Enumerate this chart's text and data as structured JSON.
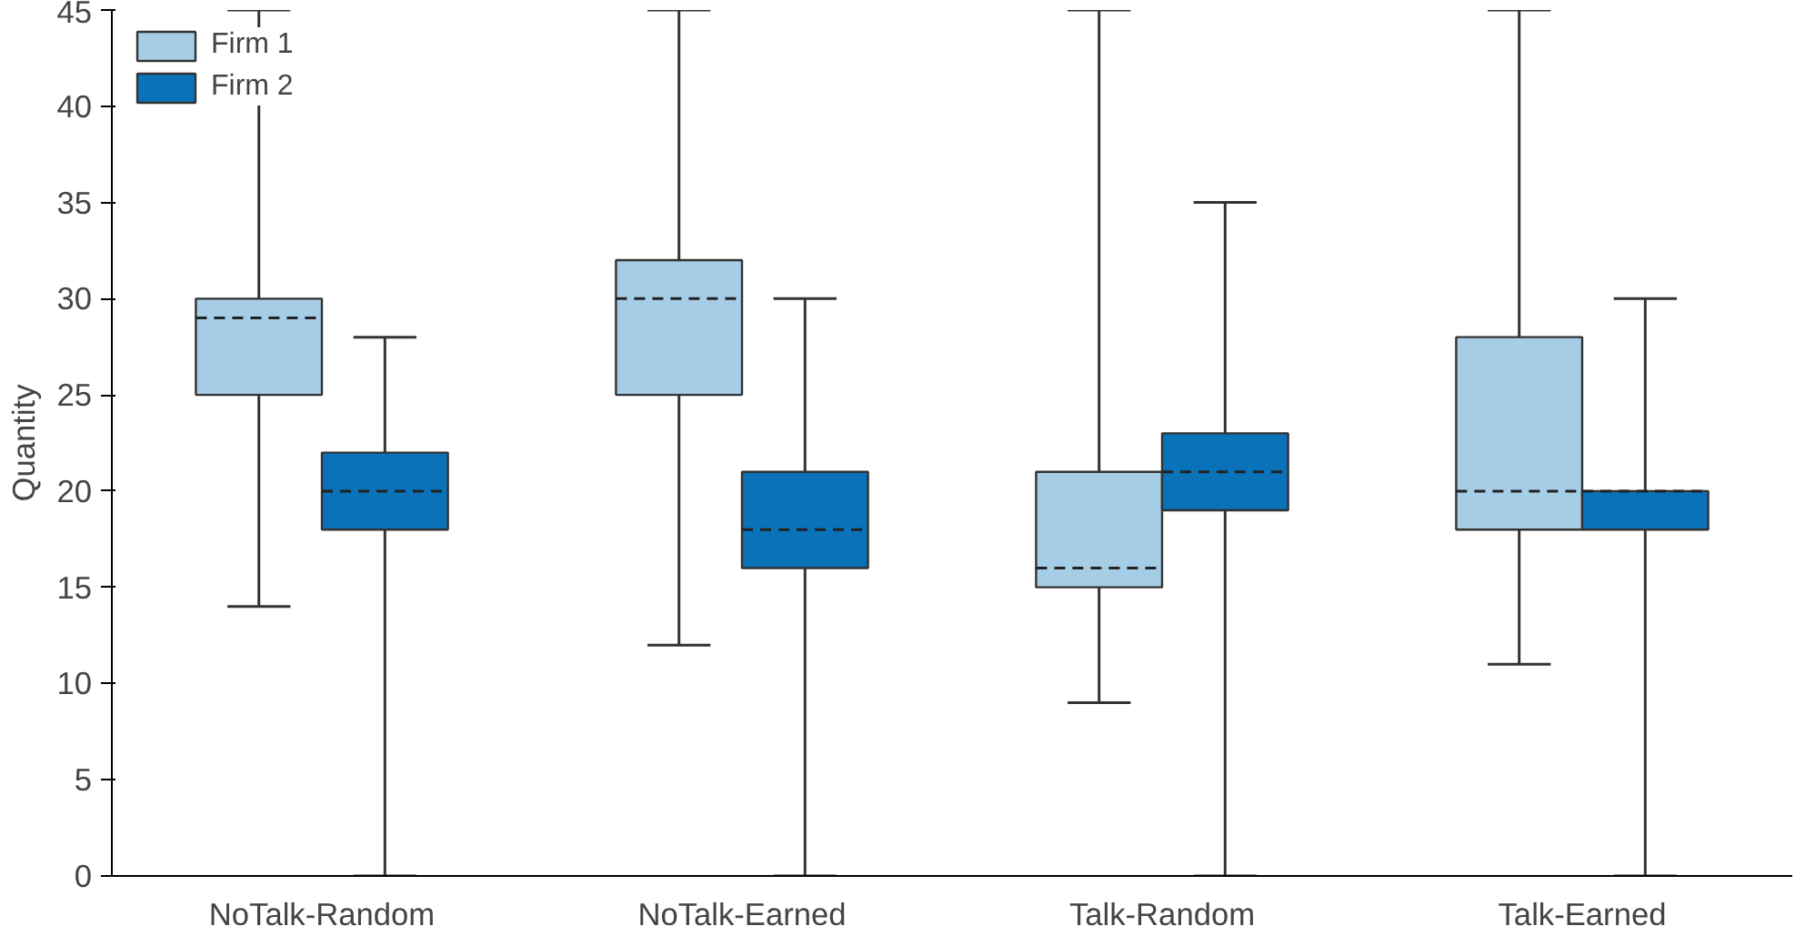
{
  "chart_data": {
    "type": "box",
    "ylabel": "Quantity",
    "categories": [
      "NoTalk-Random",
      "NoTalk-Earned",
      "Talk-Random",
      "Talk-Earned"
    ],
    "ylim": [
      0,
      45
    ],
    "yticks": [
      0,
      5,
      10,
      15,
      20,
      25,
      30,
      35,
      40,
      45
    ],
    "grid": false,
    "legend": "top left",
    "series": [
      {
        "name": "Firm 1",
        "color": "#a6cde6",
        "boxes": [
          {
            "low": 14,
            "q1": 25,
            "median": 29,
            "q3": 30,
            "high": 45
          },
          {
            "low": 12,
            "q1": 25,
            "median": 30,
            "q3": 32,
            "high": 45
          },
          {
            "low": 9,
            "q1": 15,
            "median": 16,
            "q3": 21,
            "high": 45
          },
          {
            "low": 11,
            "q1": 18,
            "median": 20,
            "q3": 28,
            "high": 45
          }
        ]
      },
      {
        "name": "Firm 2",
        "color": "#0a72b9",
        "boxes": [
          {
            "low": 0,
            "q1": 18,
            "median": 20,
            "q3": 22,
            "high": 28
          },
          {
            "low": 0,
            "q1": 16,
            "median": 18,
            "q3": 21,
            "high": 30
          },
          {
            "low": 0,
            "q1": 19,
            "median": 21,
            "q3": 23,
            "high": 35
          },
          {
            "low": 0,
            "q1": 18,
            "median": 20,
            "q3": 20,
            "high": 30
          }
        ]
      }
    ]
  }
}
